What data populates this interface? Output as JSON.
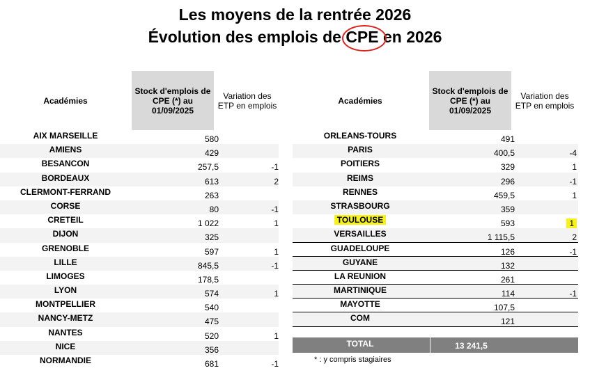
{
  "title": {
    "line1": "Les moyens de la rentrée 2026",
    "line2_before": "Évolution des emplois de ",
    "line2_highlight": "CPE",
    "line2_after": " en 2026"
  },
  "headers": {
    "academies": "Académies",
    "stock": "Stock d'emplois de CPE (*) au 01/09/2025",
    "variation": "Variation des ETP en emplois"
  },
  "left_rows": [
    {
      "name": "AIX MARSEILLE",
      "stock": "580",
      "var": ""
    },
    {
      "name": "AMIENS",
      "stock": "429",
      "var": ""
    },
    {
      "name": "BESANCON",
      "stock": "257,5",
      "var": "-1"
    },
    {
      "name": "BORDEAUX",
      "stock": "613",
      "var": "2"
    },
    {
      "name": "CLERMONT-FERRAND",
      "stock": "263",
      "var": ""
    },
    {
      "name": "CORSE",
      "stock": "80",
      "var": "-1"
    },
    {
      "name": "CRETEIL",
      "stock": "1 022",
      "var": "1"
    },
    {
      "name": "DIJON",
      "stock": "325",
      "var": ""
    },
    {
      "name": "GRENOBLE",
      "stock": "597",
      "var": "1"
    },
    {
      "name": "LILLE",
      "stock": "845,5",
      "var": "-1"
    },
    {
      "name": "LIMOGES",
      "stock": "178,5",
      "var": ""
    },
    {
      "name": "LYON",
      "stock": "574",
      "var": "1"
    },
    {
      "name": "MONTPELLIER",
      "stock": "540",
      "var": ""
    },
    {
      "name": "NANCY-METZ",
      "stock": "475",
      "var": ""
    },
    {
      "name": "NANTES",
      "stock": "520",
      "var": "1"
    },
    {
      "name": "NICE",
      "stock": "356",
      "var": ""
    },
    {
      "name": "NORMANDIE",
      "stock": "681",
      "var": "-1"
    }
  ],
  "right_rows": [
    {
      "name": "ORLEANS-TOURS",
      "stock": "491",
      "var": ""
    },
    {
      "name": "PARIS",
      "stock": "400,5",
      "var": "-4"
    },
    {
      "name": "POITIERS",
      "stock": "329",
      "var": "1"
    },
    {
      "name": "REIMS",
      "stock": "296",
      "var": "-1"
    },
    {
      "name": "RENNES",
      "stock": "459,5",
      "var": "1"
    },
    {
      "name": "STRASBOURG",
      "stock": "359",
      "var": ""
    },
    {
      "name": "TOULOUSE",
      "stock": "593",
      "var": "1",
      "highlight": true
    },
    {
      "name": "VERSAILLES",
      "stock": "1 115,5",
      "var": "2"
    },
    {
      "name": "GUADELOUPE",
      "stock": "126",
      "var": "-1"
    },
    {
      "name": "GUYANE",
      "stock": "132",
      "var": ""
    },
    {
      "name": "LA REUNION",
      "stock": "261",
      "var": ""
    },
    {
      "name": "MARTINIQUE",
      "stock": "114",
      "var": "-1"
    },
    {
      "name": "MAYOTTE",
      "stock": "107,5",
      "var": ""
    },
    {
      "name": "COM",
      "stock": "121",
      "var": ""
    }
  ],
  "total": {
    "label": "TOTAL",
    "value": "13 241,5"
  },
  "footnote": "* : y compris stagiaires",
  "colors": {
    "highlight": "#f7f21a",
    "circle": "#e0201b",
    "header_fill": "#d9d9d9",
    "total_fill": "#808080"
  }
}
